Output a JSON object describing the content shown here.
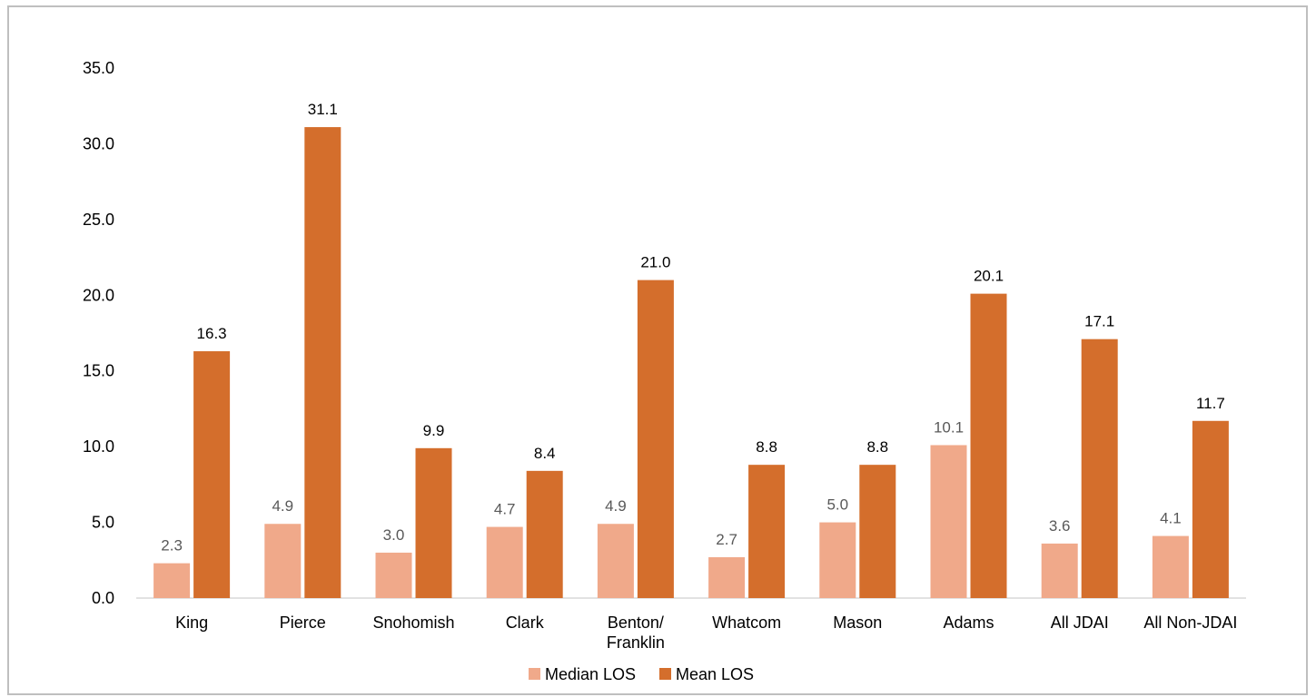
{
  "chart_data": {
    "type": "bar",
    "categories": [
      [
        "King"
      ],
      [
        "Pierce"
      ],
      [
        "Snohomish"
      ],
      [
        "Clark"
      ],
      [
        "Benton/",
        "Franklin"
      ],
      [
        "Whatcom"
      ],
      [
        "Mason"
      ],
      [
        "Adams"
      ],
      [
        "All JDAI"
      ],
      [
        "All Non-JDAI"
      ]
    ],
    "series": [
      {
        "name": "Median LOS",
        "color": "#f0a98a",
        "label_color": "#595959",
        "values": [
          2.3,
          4.9,
          3.0,
          4.7,
          4.9,
          2.7,
          5.0,
          10.1,
          3.6,
          4.1
        ],
        "labels": [
          "2.3",
          "4.9",
          "3.0",
          "4.7",
          "4.9",
          "2.7",
          "5.0",
          "10.1",
          "3.6",
          "4.1"
        ]
      },
      {
        "name": "Mean LOS",
        "color": "#d46e2c",
        "label_color": "#000000",
        "values": [
          16.3,
          31.1,
          9.9,
          8.4,
          21.0,
          8.8,
          8.8,
          20.1,
          17.1,
          11.7
        ],
        "labels": [
          "16.3",
          "31.1",
          "9.9",
          "8.4",
          "21.0",
          "8.8",
          "8.8",
          "20.1",
          "17.1",
          "11.7"
        ]
      }
    ],
    "ylim": [
      0,
      35
    ],
    "yticks": [
      "0.0",
      "5.0",
      "10.0",
      "15.0",
      "20.0",
      "25.0",
      "30.0",
      "35.0"
    ],
    "ytick_values": [
      0,
      5,
      10,
      15,
      20,
      25,
      30,
      35
    ],
    "grid": false,
    "legend_position": "bottom"
  }
}
